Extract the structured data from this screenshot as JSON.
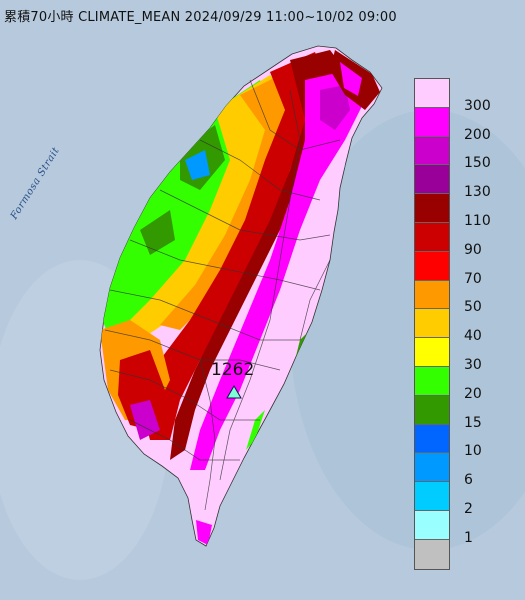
{
  "header": {
    "title": "累積70小時 CLIMATE_MEAN 2024/09/29 11:00~10/02 09:00"
  },
  "map": {
    "strait_label": "Formosa Strait",
    "max_value": "1262",
    "max_marker_icon": "triangle-marker-icon"
  },
  "legend": {
    "items": [
      {
        "label": "300",
        "color": "#ffccff"
      },
      {
        "label": "200",
        "color": "#ff00ff"
      },
      {
        "label": "150",
        "color": "#cc00cc"
      },
      {
        "label": "130",
        "color": "#990099"
      },
      {
        "label": "110",
        "color": "#990000"
      },
      {
        "label": "90",
        "color": "#cc0000"
      },
      {
        "label": "70",
        "color": "#ff0000"
      },
      {
        "label": "50",
        "color": "#ff9900"
      },
      {
        "label": "40",
        "color": "#ffcc00"
      },
      {
        "label": "30",
        "color": "#ffff00"
      },
      {
        "label": "20",
        "color": "#33ff00"
      },
      {
        "label": "15",
        "color": "#339900"
      },
      {
        "label": "10",
        "color": "#0066ff"
      },
      {
        "label": "6",
        "color": "#0099ff"
      },
      {
        "label": "2",
        "color": "#00ccff"
      },
      {
        "label": "1",
        "color": "#99ffff"
      },
      {
        "label": "",
        "color": "#c0c0c0"
      }
    ]
  }
}
